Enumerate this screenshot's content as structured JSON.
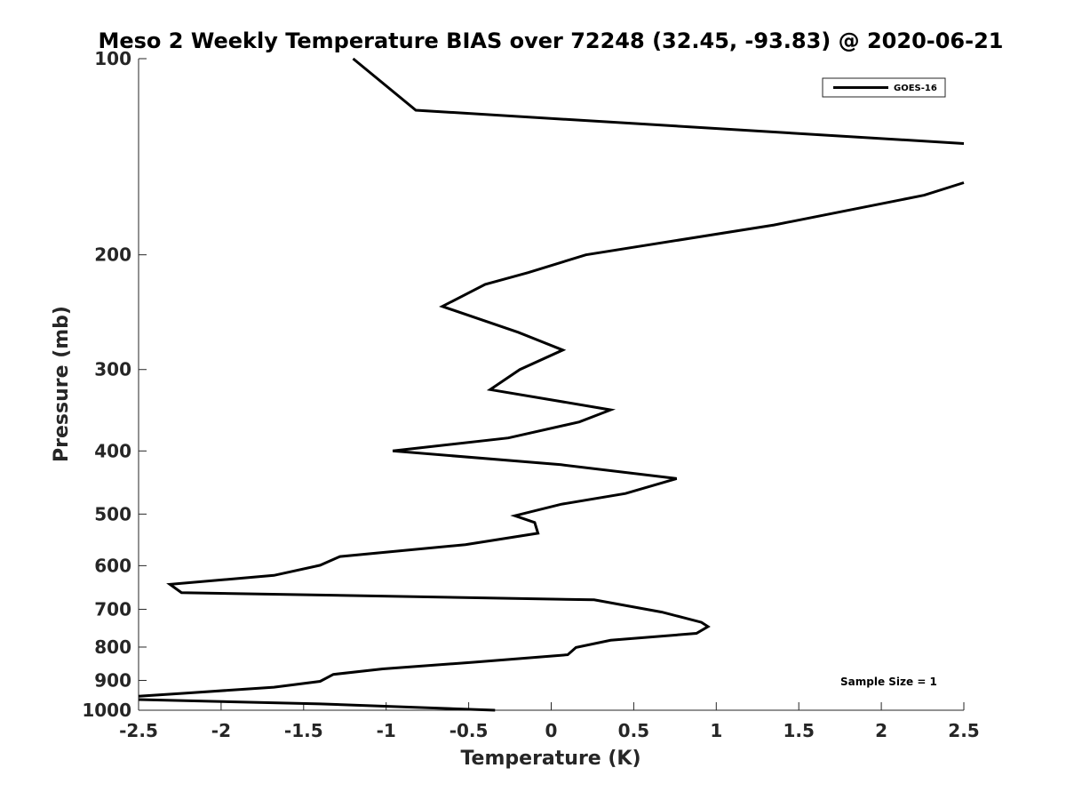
{
  "chart_data": {
    "type": "line",
    "title": "Meso 2 Weekly Temperature BIAS over 72248 (32.45, -93.83) @ 2020-06-21",
    "xlabel": "Temperature (K)",
    "ylabel": "Pressure (mb)",
    "xlim": [
      -2.5,
      2.5
    ],
    "ylim": [
      100,
      1000
    ],
    "y_scale": "log",
    "y_reversed": true,
    "grid": false,
    "x_ticks": [
      -2.5,
      -2,
      -1.5,
      -1,
      -0.5,
      0,
      0.5,
      1,
      1.5,
      2,
      2.5
    ],
    "x_tick_labels": [
      "-2.5",
      "-2",
      "-1.5",
      "-1",
      "-0.5",
      "0",
      "0.5",
      "1",
      "1.5",
      "2",
      "2.5"
    ],
    "y_ticks": [
      100,
      200,
      300,
      400,
      500,
      600,
      700,
      800,
      900,
      1000
    ],
    "y_tick_labels": [
      "100",
      "200",
      "300",
      "400",
      "500",
      "600",
      "700",
      "800",
      "900",
      "1000"
    ],
    "legend": {
      "position": "top-right",
      "entries": [
        "GOES-16"
      ]
    },
    "annotation": "Sample Size = 1",
    "line_color": "#000000",
    "series": [
      {
        "name": "GOES-16",
        "points": [
          [
            -1.2,
            100
          ],
          [
            -0.82,
            120
          ],
          [
            2.5,
            135
          ],
          [
            null,
            null
          ],
          [
            2.5,
            155
          ],
          [
            2.26,
            162
          ],
          [
            1.35,
            180
          ],
          [
            0.21,
            200
          ],
          [
            -0.14,
            213
          ],
          [
            -0.4,
            222
          ],
          [
            -0.66,
            240
          ],
          [
            -0.2,
            263
          ],
          [
            0.07,
            280
          ],
          [
            -0.19,
            300
          ],
          [
            -0.37,
            322
          ],
          [
            0.36,
            346
          ],
          [
            0.17,
            361
          ],
          [
            -0.26,
            382
          ],
          [
            -0.96,
            400
          ],
          [
            0.06,
            420
          ],
          [
            0.76,
            441
          ],
          [
            0.45,
            465
          ],
          [
            0.06,
            483
          ],
          [
            -0.22,
            503
          ],
          [
            -0.1,
            515
          ],
          [
            -0.08,
            535
          ],
          [
            -0.52,
            557
          ],
          [
            -1.28,
            581
          ],
          [
            -1.4,
            599
          ],
          [
            -1.68,
            621
          ],
          [
            -2.31,
            641
          ],
          [
            -2.24,
            660
          ],
          [
            0.26,
            677
          ],
          [
            0.67,
            707
          ],
          [
            0.91,
            733
          ],
          [
            0.95,
            744
          ],
          [
            0.88,
            762
          ],
          [
            0.36,
            781
          ],
          [
            0.15,
            801
          ],
          [
            0.1,
            822
          ],
          [
            -0.47,
            844
          ],
          [
            -1.02,
            864
          ],
          [
            -1.32,
            881
          ],
          [
            -1.4,
            903
          ],
          [
            -1.68,
            922
          ],
          [
            -2.2,
            941
          ],
          [
            -2.5,
            952
          ],
          [
            null,
            null
          ],
          [
            -2.5,
            963
          ],
          [
            -1.4,
            978
          ],
          [
            -0.34,
            1000
          ]
        ]
      }
    ]
  }
}
